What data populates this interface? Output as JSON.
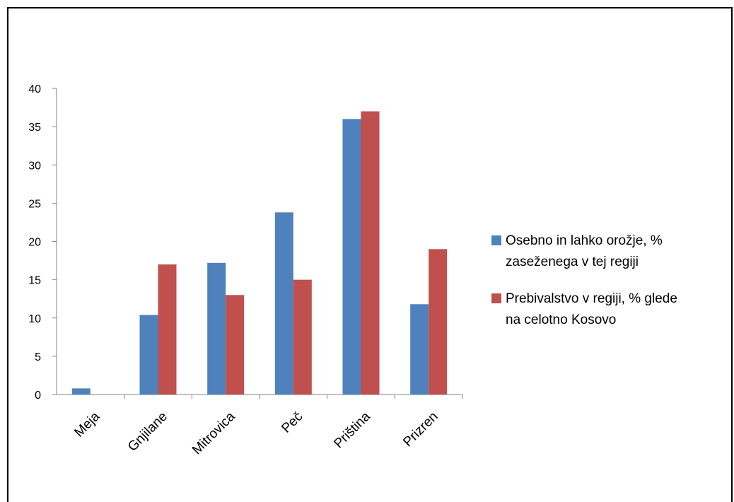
{
  "chart_data": {
    "type": "bar",
    "categories": [
      "Meja",
      "Gnjilane",
      "Mitrovica",
      "Peč",
      "Priština",
      "Prizren"
    ],
    "series": [
      {
        "name": "Osebno in lahko orožje, % zaseženega v tej regiji",
        "legend_lines": [
          "Osebno in lahko orožje, %",
          "zaseženega v tej regiji"
        ],
        "color": "#4f81bd",
        "values": [
          0.8,
          10.4,
          17.2,
          23.8,
          36.0,
          11.8
        ]
      },
      {
        "name": "Prebivalstvo v regiji, % glede na celotno Kosovo",
        "legend_lines": [
          "Prebivalstvo v regiji, % glede",
          "na celotno Kosovo"
        ],
        "color": "#c0504d",
        "values": [
          0,
          17,
          13,
          15,
          37,
          19
        ]
      }
    ],
    "ylim": [
      0,
      40
    ],
    "yticks": [
      0,
      5,
      10,
      15,
      20,
      25,
      30,
      35,
      40
    ],
    "title": "",
    "xlabel": "",
    "ylabel": "",
    "legend_position": "right",
    "grid": false
  }
}
